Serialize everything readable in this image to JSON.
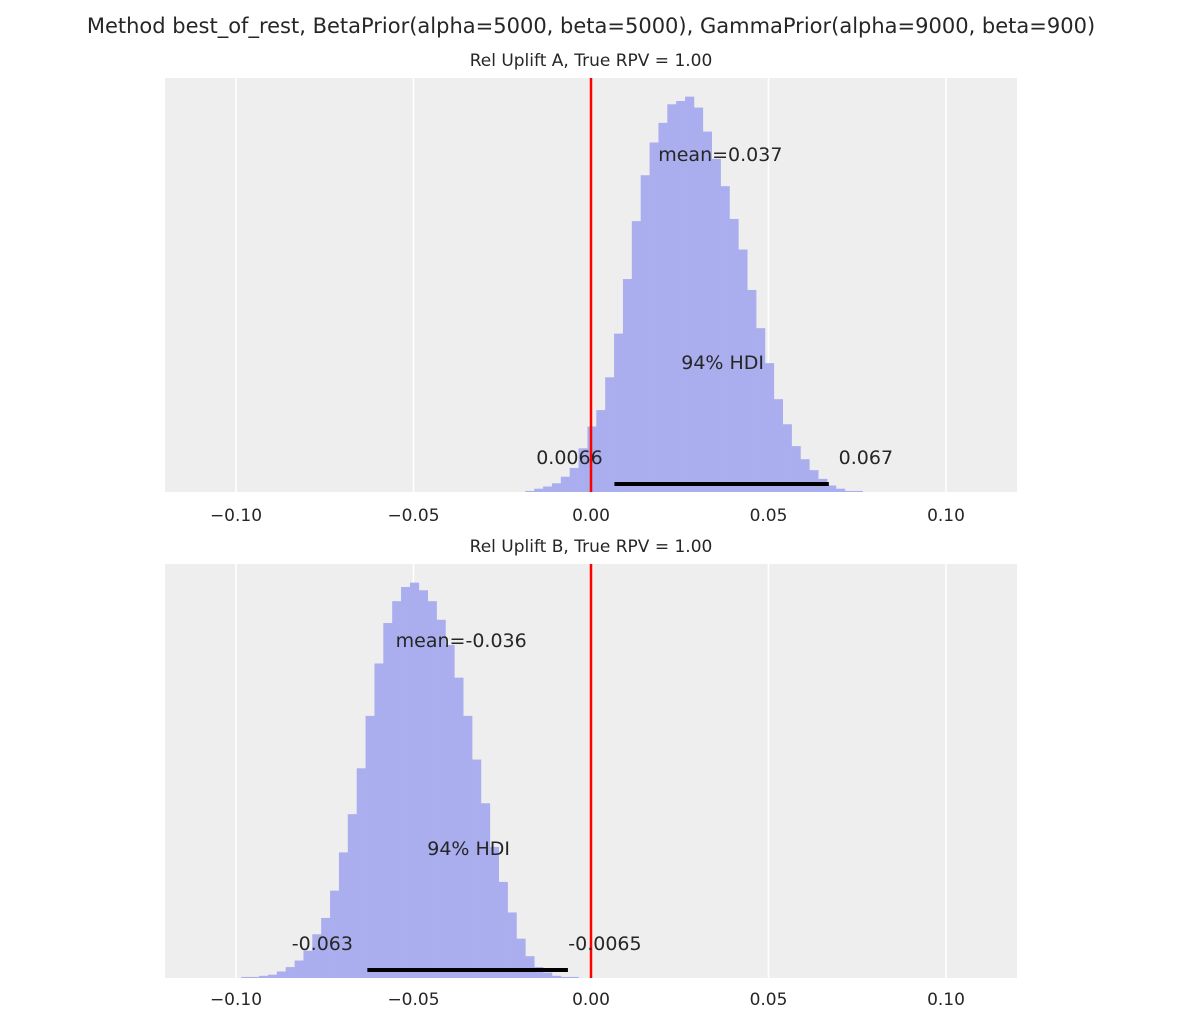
{
  "figure": {
    "suptitle": "Method best_of_rest, BetaPrior(alpha=5000, beta=5000), GammaPrior(alpha=9000, beta=900)"
  },
  "colors": {
    "background": "#eeeeee",
    "grid": "#ffffff",
    "hist": "#aaaeee",
    "reference_line": "#ff0000",
    "hdi_bar": "#000000",
    "text": "#262626"
  },
  "chart_data": [
    {
      "type": "bar",
      "title": "Rel Uplift A, True RPV = 1.00",
      "xlim": [
        -0.12,
        0.12
      ],
      "xticks": [
        -0.1,
        -0.05,
        0.0,
        0.05,
        0.1
      ],
      "xtick_labels": [
        "−0.10",
        "−0.05",
        "0.00",
        "0.05",
        "0.10"
      ],
      "grid": true,
      "reference_value": 0.0,
      "bin_start": -0.0185,
      "bin_width": 0.0025,
      "counts": [
        1,
        3,
        5,
        8,
        14,
        22,
        40,
        60,
        75,
        105,
        145,
        195,
        248,
        290,
        320,
        338,
        355,
        358,
        362,
        352,
        330,
        305,
        280,
        250,
        222,
        185,
        150,
        118,
        85,
        62,
        42,
        30,
        20,
        12,
        6,
        3,
        1,
        1
      ],
      "mean": 0.037,
      "mean_label": "mean=0.037",
      "hdi": [
        0.0066,
        0.067
      ],
      "hdi_label": "94% HDI",
      "hdi_low_label": "0.0066",
      "hdi_high_label": "0.067"
    },
    {
      "type": "bar",
      "title": "Rel Uplift B, True RPV = 1.00",
      "xlim": [
        -0.12,
        0.12
      ],
      "xticks": [
        -0.1,
        -0.05,
        0.0,
        0.05,
        0.1
      ],
      "xtick_labels": [
        "−0.10",
        "−0.05",
        "0.00",
        "0.05",
        "0.10"
      ],
      "grid": true,
      "reference_value": 0.0,
      "bin_start": -0.0985,
      "bin_width": 0.0025,
      "counts": [
        1,
        1,
        2,
        3,
        6,
        10,
        16,
        25,
        40,
        55,
        80,
        115,
        150,
        192,
        240,
        288,
        325,
        345,
        358,
        362,
        355,
        345,
        328,
        305,
        275,
        240,
        200,
        160,
        120,
        88,
        60,
        36,
        20,
        10,
        5,
        2,
        1,
        1
      ],
      "mean": -0.036,
      "mean_label": "mean=-0.036",
      "hdi": [
        -0.063,
        -0.0065
      ],
      "hdi_label": "94% HDI",
      "hdi_low_label": "-0.063",
      "hdi_high_label": "-0.0065"
    }
  ]
}
